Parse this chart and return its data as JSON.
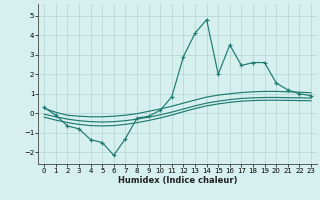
{
  "xlabel": "Humidex (Indice chaleur)",
  "bg_color": "#d6f0ef",
  "grid_color": "#b8d8d5",
  "line_color": "#1e7a70",
  "xlim": [
    -0.5,
    23.5
  ],
  "ylim": [
    -2.6,
    5.6
  ],
  "xticks": [
    0,
    1,
    2,
    3,
    4,
    5,
    6,
    7,
    8,
    9,
    10,
    11,
    12,
    13,
    14,
    15,
    16,
    17,
    18,
    19,
    20,
    21,
    22,
    23
  ],
  "yticks": [
    -2,
    -1,
    0,
    1,
    2,
    3,
    4,
    5
  ],
  "main_x": [
    0,
    1,
    2,
    3,
    4,
    5,
    6,
    7,
    8,
    9,
    10,
    11,
    12,
    13,
    14,
    15,
    16,
    17,
    18,
    19,
    20,
    21,
    22,
    23
  ],
  "main_y": [
    0.3,
    -0.1,
    -0.65,
    -0.8,
    -1.35,
    -1.5,
    -2.15,
    -1.3,
    -0.25,
    -0.15,
    0.15,
    0.85,
    2.9,
    4.1,
    4.8,
    2.0,
    3.5,
    2.45,
    2.6,
    2.6,
    1.55,
    1.2,
    1.0,
    0.9
  ],
  "smooth1_x": [
    0,
    1,
    2,
    3,
    4,
    5,
    6,
    7,
    8,
    9,
    10,
    11,
    12,
    13,
    14,
    15,
    16,
    17,
    18,
    19,
    20,
    21,
    22,
    23
  ],
  "smooth1_y": [
    0.25,
    0.05,
    -0.1,
    -0.15,
    -0.18,
    -0.18,
    -0.15,
    -0.1,
    -0.02,
    0.1,
    0.22,
    0.36,
    0.52,
    0.68,
    0.83,
    0.93,
    1.0,
    1.06,
    1.1,
    1.12,
    1.12,
    1.1,
    1.08,
    1.05
  ],
  "smooth2_x": [
    0,
    1,
    2,
    3,
    4,
    5,
    6,
    7,
    8,
    9,
    10,
    11,
    12,
    13,
    14,
    15,
    16,
    17,
    18,
    19,
    20,
    21,
    22,
    23
  ],
  "smooth2_y": [
    -0.05,
    -0.18,
    -0.3,
    -0.38,
    -0.43,
    -0.45,
    -0.43,
    -0.38,
    -0.3,
    -0.2,
    -0.08,
    0.06,
    0.22,
    0.38,
    0.52,
    0.62,
    0.7,
    0.76,
    0.79,
    0.81,
    0.81,
    0.8,
    0.79,
    0.78
  ],
  "smooth3_x": [
    0,
    1,
    2,
    3,
    4,
    5,
    6,
    7,
    8,
    9,
    10,
    11,
    12,
    13,
    14,
    15,
    16,
    17,
    18,
    19,
    20,
    21,
    22,
    23
  ],
  "smooth3_y": [
    -0.2,
    -0.35,
    -0.48,
    -0.57,
    -0.63,
    -0.65,
    -0.63,
    -0.57,
    -0.48,
    -0.37,
    -0.24,
    -0.09,
    0.08,
    0.24,
    0.38,
    0.48,
    0.56,
    0.62,
    0.65,
    0.67,
    0.67,
    0.66,
    0.65,
    0.64
  ]
}
